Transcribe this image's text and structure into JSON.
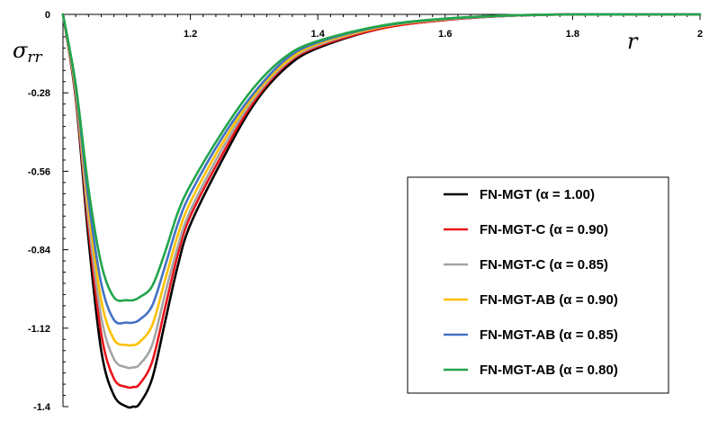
{
  "chart_data": {
    "type": "line",
    "title": "",
    "xlabel": "r",
    "ylabel": "σ",
    "ylabel_sub": "rr",
    "xlim": [
      1.0,
      2.0
    ],
    "ylim": [
      -1.4,
      0
    ],
    "x_ticks": [
      1.2,
      1.4,
      1.6,
      1.8,
      2.0
    ],
    "x_tick_labels": [
      "1.2",
      "1.4",
      "1.6",
      "1.8",
      "2"
    ],
    "y_ticks": [
      0,
      -0.28,
      -0.56,
      -0.84,
      -1.12,
      -1.4
    ],
    "y_tick_labels": [
      "0",
      "-0.28",
      "-0.56",
      "-0.84",
      "-1.12",
      "-1.4"
    ],
    "legend_position": "right",
    "x": [
      1.0,
      1.02,
      1.04,
      1.06,
      1.08,
      1.1,
      1.11,
      1.12,
      1.14,
      1.16,
      1.18,
      1.2,
      1.25,
      1.3,
      1.35,
      1.4,
      1.5,
      1.6,
      1.7,
      1.8,
      1.9,
      2.0
    ],
    "series": [
      {
        "name": "FN-MGT (α = 1.00)",
        "color": "#000000",
        "values": [
          0,
          -0.3,
          -0.8,
          -1.2,
          -1.36,
          -1.4,
          -1.4,
          -1.39,
          -1.3,
          -1.1,
          -0.9,
          -0.75,
          -0.52,
          -0.32,
          -0.19,
          -0.12,
          -0.05,
          -0.02,
          -0.005,
          0,
          0,
          0
        ]
      },
      {
        "name": "FN-MGT-C (α = 0.90)",
        "color": "#e8141c",
        "values": [
          0,
          -0.29,
          -0.76,
          -1.14,
          -1.3,
          -1.33,
          -1.33,
          -1.32,
          -1.24,
          -1.05,
          -0.86,
          -0.72,
          -0.5,
          -0.31,
          -0.18,
          -0.115,
          -0.05,
          -0.02,
          -0.005,
          0,
          0,
          0
        ]
      },
      {
        "name": "FN-MGT-C (α = 0.85)",
        "color": "#a5a5a5",
        "values": [
          0,
          -0.28,
          -0.73,
          -1.08,
          -1.23,
          -1.26,
          -1.26,
          -1.25,
          -1.18,
          -1.0,
          -0.83,
          -0.7,
          -0.48,
          -0.3,
          -0.175,
          -0.11,
          -0.045,
          -0.018,
          -0.005,
          0,
          0,
          0
        ]
      },
      {
        "name": "FN-MGT-AB (α = 0.90)",
        "color": "#ffc000",
        "values": [
          0,
          -0.27,
          -0.69,
          -1.02,
          -1.16,
          -1.18,
          -1.18,
          -1.17,
          -1.11,
          -0.95,
          -0.79,
          -0.67,
          -0.46,
          -0.29,
          -0.17,
          -0.105,
          -0.045,
          -0.017,
          -0.004,
          0,
          0,
          0
        ]
      },
      {
        "name": "FN-MGT-AB (α = 0.85)",
        "color": "#4472c4",
        "values": [
          0,
          -0.26,
          -0.66,
          -0.96,
          -1.09,
          -1.1,
          -1.1,
          -1.09,
          -1.04,
          -0.9,
          -0.75,
          -0.64,
          -0.44,
          -0.28,
          -0.16,
          -0.1,
          -0.042,
          -0.016,
          -0.004,
          0,
          0,
          0
        ]
      },
      {
        "name": "FN-MGT-AB (α = 0.80)",
        "color": "#22a54b",
        "values": [
          0,
          -0.25,
          -0.62,
          -0.89,
          -1.01,
          -1.02,
          -1.02,
          -1.01,
          -0.97,
          -0.85,
          -0.71,
          -0.61,
          -0.42,
          -0.26,
          -0.15,
          -0.095,
          -0.04,
          -0.015,
          -0.004,
          0,
          0,
          0
        ]
      }
    ]
  }
}
